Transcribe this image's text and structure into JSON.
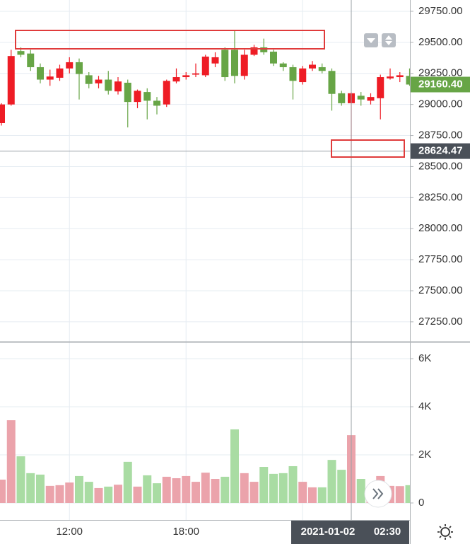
{
  "chart_data": [
    {
      "type": "candlestick",
      "categories": [
        null,
        null,
        null,
        null,
        null,
        null,
        null,
        "12:00",
        null,
        null,
        null,
        null,
        null,
        null,
        null,
        null,
        null,
        null,
        null,
        "18:00",
        null,
        null,
        null,
        null,
        null,
        null,
        null,
        null,
        null,
        null,
        null,
        null,
        null,
        null,
        null,
        null,
        null,
        null,
        null,
        null,
        null,
        null,
        null
      ],
      "open": [
        28850,
        29000,
        29430,
        29410,
        29300,
        29200,
        29215,
        29290,
        29340,
        29235,
        29170,
        29200,
        29105,
        29175,
        29020,
        29100,
        29030,
        29000,
        29185,
        29220,
        29240,
        29235,
        29330,
        29440,
        29440,
        29230,
        29400,
        29460,
        29425,
        29330,
        29300,
        29180,
        29290,
        29300,
        29270,
        29090,
        29010,
        29070,
        29030,
        29050,
        29210,
        29220,
        29230
      ],
      "high": [
        29010,
        29440,
        29460,
        29440,
        29330,
        29280,
        29320,
        29380,
        29370,
        29260,
        29230,
        29270,
        29220,
        29200,
        29120,
        29130,
        29060,
        29200,
        29290,
        29260,
        29330,
        29400,
        29420,
        29460,
        29600,
        29440,
        29480,
        29530,
        29440,
        29340,
        29320,
        29310,
        29350,
        29330,
        29290,
        29110,
        29100,
        29100,
        29090,
        29240,
        29290,
        29260,
        29290
      ],
      "low": [
        28830,
        28990,
        29380,
        29270,
        29170,
        29150,
        29190,
        29250,
        29040,
        29130,
        29130,
        29080,
        29080,
        28815,
        28970,
        28880,
        28920,
        28980,
        29170,
        29200,
        29220,
        29220,
        29300,
        29190,
        29170,
        29200,
        29390,
        29400,
        29310,
        29270,
        29040,
        29160,
        29270,
        29250,
        28950,
        28990,
        28630,
        28990,
        29000,
        28880,
        29200,
        29180,
        29150
      ],
      "close": [
        29000,
        29390,
        29400,
        29300,
        29200,
        29225,
        29290,
        29340,
        29245,
        29165,
        29200,
        29110,
        29185,
        29020,
        29110,
        29030,
        28990,
        29190,
        29220,
        29235,
        29250,
        29385,
        29380,
        29220,
        29230,
        29400,
        29460,
        29420,
        29330,
        29300,
        29190,
        29290,
        29320,
        29270,
        29085,
        29010,
        29090,
        29040,
        29060,
        29220,
        29225,
        29235,
        29160.4
      ],
      "up_color": "#ee1c25",
      "down_color": "#67a546",
      "ylim": [
        27090,
        29841
      ],
      "yticks": [
        {
          "value": 27250,
          "label": "27250.00"
        },
        {
          "value": 27500,
          "label": "27500.00"
        },
        {
          "value": 27750,
          "label": "27750.00"
        },
        {
          "value": 28000,
          "label": "28000.00"
        },
        {
          "value": 28250,
          "label": "28250.00"
        },
        {
          "value": 28500,
          "label": "28500.00"
        },
        {
          "value": 28750,
          "label": "28750.00"
        },
        {
          "value": 29000,
          "label": "29000.00"
        },
        {
          "value": 29250,
          "label": "29250.00"
        },
        {
          "value": 29500,
          "label": "29500.00"
        },
        {
          "value": 29750,
          "label": "29750.00"
        }
      ],
      "grid": true,
      "last_price": {
        "value": 29160.4,
        "label": "29160.40"
      },
      "crosshair": {
        "value": 28624.47,
        "label": "28624.47",
        "date": "2021-01-02",
        "time": "02:30"
      }
    },
    {
      "type": "bar",
      "values": [
        970,
        3440,
        1940,
        1240,
        1180,
        710,
        740,
        850,
        1120,
        880,
        620,
        680,
        760,
        1710,
        680,
        1150,
        820,
        1090,
        1030,
        1120,
        880,
        1260,
        1000,
        1090,
        3060,
        1240,
        880,
        1500,
        1210,
        1240,
        1530,
        880,
        650,
        650,
        1790,
        1380,
        2820,
        1000,
        620,
        1120,
        710,
        700,
        740
      ],
      "up_color": "#eba3ab",
      "down_color": "#a9dca3",
      "ylim": [
        -706,
        6706
      ],
      "yticks": [
        0,
        {
          "value": 2000,
          "label": "2K"
        },
        {
          "value": 4000,
          "label": "4K"
        },
        {
          "value": 6000,
          "label": "6K"
        }
      ],
      "grid": true
    }
  ]
}
